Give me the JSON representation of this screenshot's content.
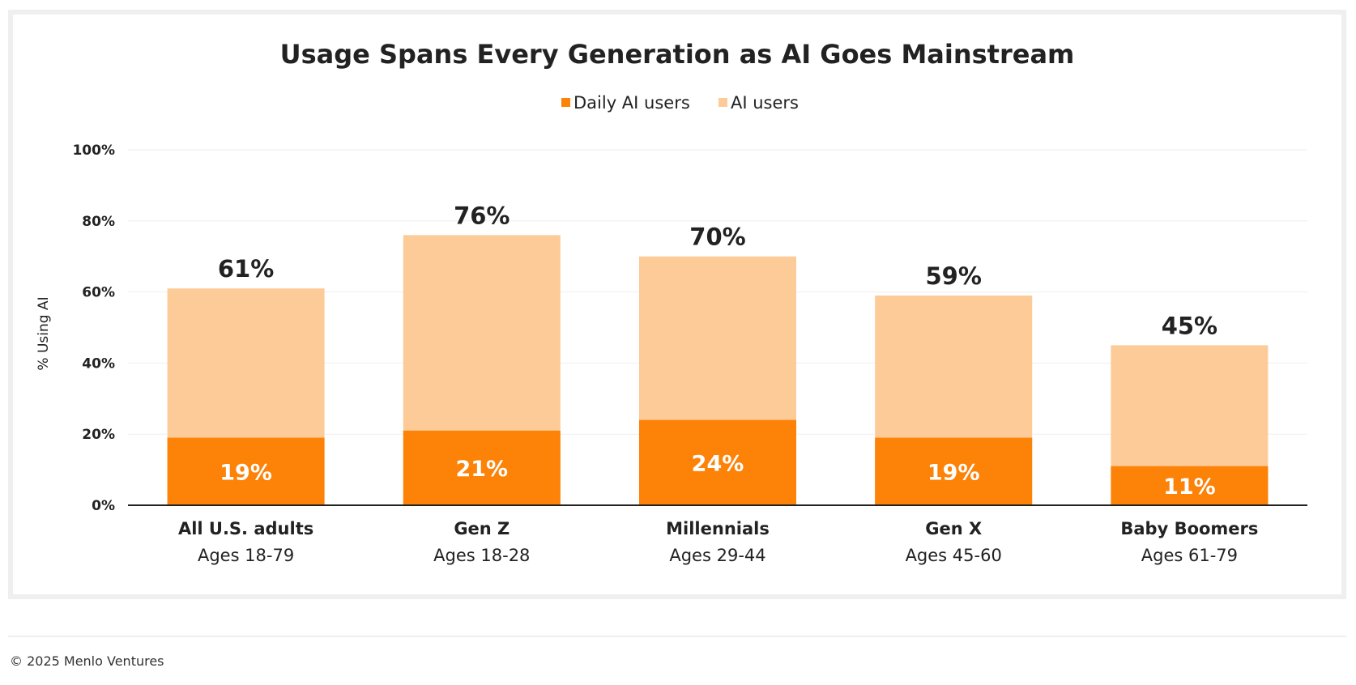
{
  "chart_data": {
    "type": "bar",
    "stacked": true,
    "title": "Usage Spans Every Generation as AI Goes Mainstream",
    "ylabel": "% Using AI",
    "xlabel": "",
    "ylim": [
      0,
      100
    ],
    "yticks": [
      0,
      20,
      40,
      60,
      80,
      100
    ],
    "ytick_labels": [
      "0%",
      "20%",
      "40%",
      "60%",
      "80%",
      "100%"
    ],
    "grid": true,
    "legend_position": "top-center",
    "categories": [
      {
        "label": "All U.S. adults",
        "sublabel": "Ages 18-79"
      },
      {
        "label": "Gen Z",
        "sublabel": "Ages 18-28"
      },
      {
        "label": "Millennials",
        "sublabel": "Ages 29-44"
      },
      {
        "label": "Gen X",
        "sublabel": "Ages 45-60"
      },
      {
        "label": "Baby Boomers",
        "sublabel": "Ages 61-79"
      }
    ],
    "series": [
      {
        "name": "Daily AI users",
        "color": "#fc8208",
        "values": [
          19,
          21,
          24,
          19,
          11
        ],
        "data_labels": [
          "19%",
          "21%",
          "24%",
          "19%",
          "11%"
        ]
      },
      {
        "name": "AI users",
        "color": "#fdcb98",
        "values": [
          61,
          76,
          70,
          59,
          45
        ],
        "data_labels": [
          "61%",
          "76%",
          "70%",
          "59%",
          "45%"
        ]
      }
    ]
  },
  "colors": {
    "daily": "#fc8208",
    "users": "#fdcb98",
    "gridline": "#eeeeee",
    "axis": "#222222"
  },
  "footer": {
    "copyright": "© 2025 Menlo Ventures"
  }
}
